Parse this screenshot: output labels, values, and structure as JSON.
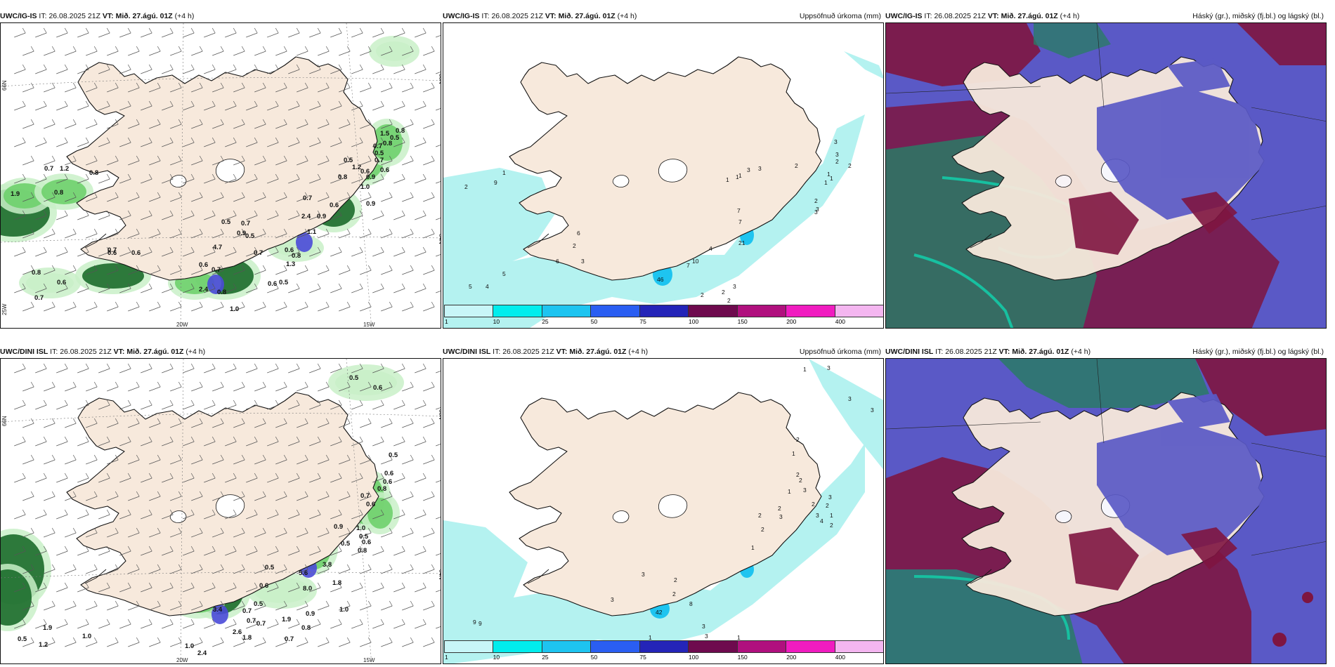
{
  "panels": [
    {
      "model": "UWC/IG-IS",
      "it_label": "IT:",
      "it": "26.08.2025 21Z",
      "vt_label": "VT:",
      "vt": "Mið. 27.ágú. 01Z",
      "lead": "(+4 h)",
      "right": "",
      "kind": "wind",
      "lat_labels": [
        "66N",
        "64N"
      ],
      "lon_labels": [
        "20W",
        "15W"
      ],
      "extra_lat": "25W",
      "values": [
        "1.9",
        "0.7",
        "1.2",
        "0.8",
        "0.7",
        "0.6",
        "0.8",
        "0.6",
        "0.7",
        "0.8",
        "0.6",
        "2.4",
        "4.7",
        "1.0",
        "0.6",
        "0.7",
        "0.8",
        "0.5",
        "0.9",
        "0.7",
        "0.5",
        "0.7",
        "0.6",
        "0.5",
        "0.6",
        "0.8",
        "1.3",
        "2.4",
        "1.1",
        "0.7",
        "0.9",
        "0.6",
        "0.5",
        "0.8",
        "1.2",
        "0.6",
        "0.9",
        "0.7",
        "0.6",
        "0.5",
        "0.7",
        "0.8",
        "1.5",
        "0.5",
        "1.0",
        "0.9",
        "0.8"
      ]
    },
    {
      "model": "UWC/IG-IS",
      "it_label": "IT:",
      "it": "26.08.2025 21Z",
      "vt_label": "VT:",
      "vt": "Mið. 27.ágú. 01Z",
      "lead": "(+4 h)",
      "right": "Uppsöfnuð úrkoma (mm)",
      "kind": "precip",
      "values": [
        "2",
        "9",
        "1",
        "6",
        "2",
        "3",
        "5",
        "5",
        "4",
        "6",
        "46",
        "10",
        "7",
        "4",
        "2",
        "2",
        "3",
        "2",
        "21",
        "7",
        "7",
        "1",
        "1",
        "1",
        "3",
        "3",
        "2",
        "2",
        "3",
        "3",
        "1",
        "1",
        "1",
        "2",
        "3",
        "3",
        "2"
      ]
    },
    {
      "model": "UWC/IG-IS",
      "it_label": "IT:",
      "it": "26.08.2025 21Z",
      "vt_label": "VT:",
      "vt": "Mið. 27.ágú. 01Z",
      "lead": "(+4 h)",
      "right": "Háský (gr.), miðský (fj.bl.) og lágský (bl.)",
      "kind": "cloud"
    },
    {
      "model": "UWC/DINI ISL",
      "it_label": "IT:",
      "it": "26.08.2025 21Z",
      "vt_label": "VT:",
      "vt": "Mið. 27.ágú. 01Z",
      "lead": "(+4 h)",
      "right": "",
      "kind": "wind",
      "lat_labels": [
        "66N",
        "64N"
      ],
      "lon_labels": [
        "20W",
        "15W"
      ],
      "extra_lat": "",
      "values": [
        "0.5",
        "0.6",
        "0.5",
        "0.6",
        "0.6",
        "0.8",
        "0.7",
        "0.6",
        "0.9",
        "0.5",
        "0.8",
        "1.0",
        "0.5",
        "0.6",
        "5.6",
        "8.0",
        "3.8",
        "1.8",
        "0.9",
        "0.5",
        "0.7",
        "1.0",
        "0.6",
        "3.4",
        "0.5",
        "0.7",
        "0.7",
        "2.6",
        "1.8",
        "1.9",
        "0.7",
        "1.0",
        "2.4",
        "0.8",
        "1.0",
        "0.5",
        "1.2",
        "1.9"
      ]
    },
    {
      "model": "UWC/DINI ISL",
      "it_label": "IT:",
      "it": "26.08.2025 21Z",
      "vt_label": "VT:",
      "vt": "Mið. 27.ágú. 01Z",
      "lead": "(+4 h)",
      "right": "Uppsöfnuð úrkoma (mm)",
      "kind": "precip",
      "values": [
        "1",
        "3",
        "3",
        "3",
        "2",
        "1",
        "2",
        "2",
        "3",
        "3",
        "2",
        "1",
        "2",
        "4",
        "3",
        "2",
        "1",
        "2",
        "3",
        "2",
        "2",
        "1",
        "42",
        "8",
        "3",
        "3",
        "2",
        "2",
        "3",
        "1",
        "3",
        "9",
        "9",
        "7",
        "1"
      ]
    },
    {
      "model": "UWC/DINI ISL",
      "it_label": "IT:",
      "it": "26.08.2025 21Z",
      "vt_label": "VT:",
      "vt": "Mið. 27.ágú. 01Z",
      "lead": "(+4 h)",
      "right": "Háský (gr.), miðský (fj.bl.) og lágský (bl.)",
      "kind": "cloud"
    }
  ],
  "colorbar": {
    "colors": [
      "#c8f6f8",
      "#00eded",
      "#1ec4f0",
      "#2a5ef2",
      "#2424b8",
      "#6e0a4e",
      "#b0107e",
      "#f01cc0",
      "#f4b6f0"
    ],
    "labels": [
      "1",
      "10",
      "25",
      "50",
      "75",
      "100",
      "150",
      "200",
      "400"
    ]
  },
  "colors": {
    "land": "#f7e9dc",
    "coast": "#111111",
    "precip_light": "#b4f2f0",
    "wind_green_light": "#c9f0c8",
    "wind_green": "#6ed06c",
    "wind_green_dark": "#1b6b2a",
    "wind_blue": "#4a4ad8",
    "cloud_blue": "#5a59c6",
    "cloud_maroon": "#7e1540",
    "cloud_green": "#2a7a66",
    "cloud_teal": "#17c0a0"
  }
}
